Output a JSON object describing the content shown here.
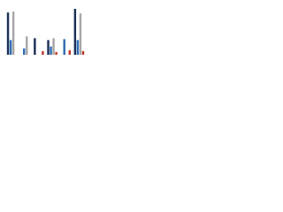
{
  "chart_data": {
    "type": "bar",
    "categories": [
      null,
      null,
      null,
      null,
      null,
      null
    ],
    "series": [
      {
        "color": "#1b2f55",
        "values": [
          92,
          0,
          36,
          32,
          0,
          100
        ]
      },
      {
        "color": "#2f6db5",
        "values": [
          32,
          14,
          0,
          18,
          34,
          32
        ]
      },
      {
        "color": "#a6a6a6",
        "values": [
          94,
          40,
          0,
          36,
          0,
          90
        ]
      },
      {
        "color": "#c0392b",
        "values": [
          0,
          0,
          8,
          6,
          10,
          8
        ]
      }
    ],
    "ylim": [
      0,
      100
    ]
  }
}
